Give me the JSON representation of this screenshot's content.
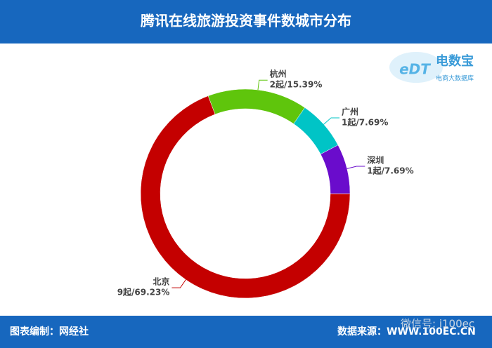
{
  "chart_data": {
    "type": "donut",
    "title": "腾讯在线旅游投资事件数城市分布",
    "categories": [
      "北京",
      "杭州",
      "广州",
      "深圳"
    ],
    "values": [
      69.23,
      15.39,
      7.69,
      7.69
    ],
    "value_labels": [
      "9起/69.23%",
      "2起/15.39%",
      "1起/7.69%",
      "1起/7.69%"
    ],
    "colors": [
      "#c40000",
      "#5fc50c",
      "#00c4c6",
      "#6a0ccc"
    ]
  },
  "logo": {
    "mark": "eDT",
    "name": "电数宝",
    "tagline": "电商大数据库"
  },
  "footer": {
    "left": "图表编制：网经社",
    "right": "数据来源：WWW.100EC.CN",
    "watermark": "微信号: i100ec"
  }
}
